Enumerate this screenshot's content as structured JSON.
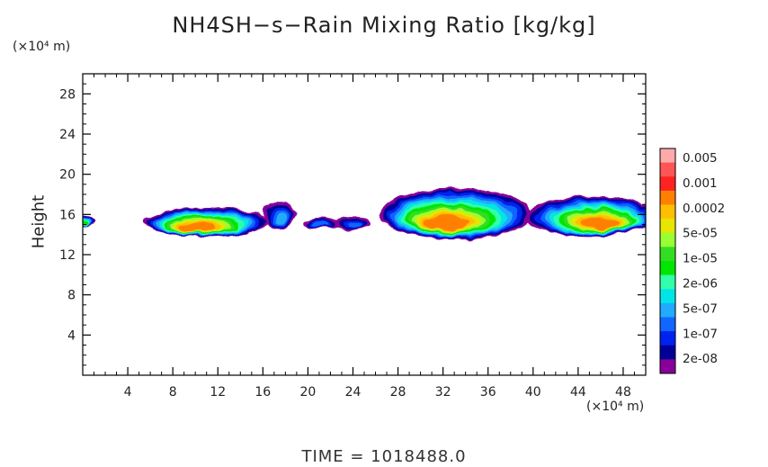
{
  "chart_data": {
    "type": "heatmap",
    "title": "NH4SH−s−Rain Mixing Ratio [kg/kg]",
    "xlabel": "",
    "ylabel": "Height",
    "x_unit": "(×10⁴ m)",
    "y_unit": "(×10⁴ m)",
    "xlim": [
      0,
      50
    ],
    "ylim": [
      0,
      30
    ],
    "x_ticks": [
      4,
      8,
      12,
      16,
      20,
      24,
      28,
      32,
      36,
      40,
      44,
      48
    ],
    "y_ticks": [
      4,
      8,
      12,
      16,
      20,
      24,
      28
    ],
    "time_label": "TIME  =  1018488.0",
    "colorbar": {
      "labels": [
        "0.005",
        "0.001",
        "0.0002",
        "5e-05",
        "1e-05",
        "2e-06",
        "5e-07",
        "1e-07",
        "2e-08"
      ],
      "colors": [
        "#ffaaaa",
        "#ff5555",
        "#ff2222",
        "#ff8000",
        "#ffbf00",
        "#e6e600",
        "#99ff33",
        "#33dd22",
        "#00e600",
        "#33ffaa",
        "#00e6e6",
        "#22aaff",
        "#1166ff",
        "#0022ee",
        "#000099",
        "#880099"
      ]
    },
    "clouds": [
      {
        "x": [
          -1,
          1
        ],
        "y": [
          14.8,
          15.8
        ],
        "peak": 8
      },
      {
        "x": [
          5.5,
          16.5
        ],
        "y": [
          13.8,
          16.7
        ],
        "peak": 3
      },
      {
        "x": [
          16,
          19
        ],
        "y": [
          14.5,
          17.4
        ],
        "peak": 11
      },
      {
        "x": [
          19.5,
          23
        ],
        "y": [
          14.6,
          15.7
        ],
        "peak": 12
      },
      {
        "x": [
          22.5,
          25.5
        ],
        "y": [
          14.4,
          15.9
        ],
        "peak": 12
      },
      {
        "x": [
          26.5,
          40
        ],
        "y": [
          13.5,
          18.6
        ],
        "peak": 3
      },
      {
        "x": [
          39.5,
          51
        ],
        "y": [
          13.8,
          17.8
        ],
        "peak": 3
      }
    ]
  }
}
